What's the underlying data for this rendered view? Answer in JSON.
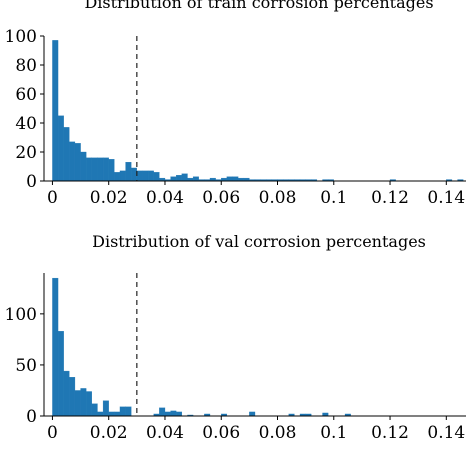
{
  "chart_data": [
    {
      "type": "bar",
      "title": "Distribution of train corrosion percentages",
      "xlabel": "",
      "ylabel": "",
      "xlim": [
        -0.003,
        0.147
      ],
      "ylim": [
        0,
        100
      ],
      "xticks": [
        0,
        0.02,
        0.04,
        0.06,
        0.08,
        0.1,
        0.12,
        0.14
      ],
      "xtick_labels": [
        "0",
        "0.02",
        "0.04",
        "0.06",
        "0.08",
        "0.1",
        "0.12",
        "0.14"
      ],
      "yticks": [
        0,
        20,
        40,
        60,
        80,
        100
      ],
      "ytick_labels": [
        "0",
        "20",
        "40",
        "60",
        "80",
        "100"
      ],
      "threshold_line_x": 0.03,
      "bin_width": 0.002,
      "bin_starts": [
        0.0,
        0.002,
        0.004,
        0.006,
        0.008,
        0.01,
        0.012,
        0.014,
        0.016,
        0.018,
        0.02,
        0.022,
        0.024,
        0.026,
        0.028,
        0.03,
        0.032,
        0.034,
        0.036,
        0.038,
        0.04,
        0.042,
        0.044,
        0.046,
        0.048,
        0.05,
        0.052,
        0.054,
        0.056,
        0.058,
        0.06,
        0.062,
        0.064,
        0.066,
        0.068,
        0.07,
        0.072,
        0.074,
        0.076,
        0.078,
        0.08,
        0.082,
        0.084,
        0.086,
        0.088,
        0.09,
        0.092,
        0.094,
        0.096,
        0.098,
        0.1,
        0.102,
        0.104,
        0.106,
        0.108,
        0.11,
        0.112,
        0.114,
        0.116,
        0.118,
        0.12,
        0.122,
        0.124,
        0.126,
        0.128,
        0.13,
        0.132,
        0.134,
        0.136,
        0.138,
        0.14,
        0.142,
        0.144
      ],
      "values": [
        97,
        45,
        37,
        27,
        26,
        20,
        16,
        16,
        16,
        16,
        15,
        6,
        7,
        13,
        9,
        7,
        7,
        7,
        6,
        2,
        1,
        3,
        4,
        5,
        2,
        3,
        1,
        1,
        2,
        1,
        2,
        3,
        3,
        2,
        2,
        1,
        1,
        1,
        1,
        1,
        1,
        1,
        1,
        1,
        1,
        1,
        1,
        0,
        1,
        1,
        0,
        0,
        0,
        0,
        0,
        0,
        0,
        0,
        0,
        0,
        1,
        0,
        0,
        0,
        0,
        0,
        0,
        0,
        0,
        0,
        1,
        0,
        1
      ]
    },
    {
      "type": "bar",
      "title": "Distribution of val corrosion percentages",
      "xlabel": "",
      "ylabel": "",
      "xlim": [
        -0.003,
        0.147
      ],
      "ylim": [
        0,
        140
      ],
      "xticks": [
        0,
        0.02,
        0.04,
        0.06,
        0.08,
        0.1,
        0.12,
        0.14
      ],
      "xtick_labels": [
        "0",
        "0.02",
        "0.04",
        "0.06",
        "0.08",
        "0.1",
        "0.12",
        "0.14"
      ],
      "yticks": [
        0,
        50,
        100
      ],
      "ytick_labels": [
        "0",
        "50",
        "100"
      ],
      "threshold_line_x": 0.03,
      "bin_width": 0.002,
      "bin_starts": [
        0.0,
        0.002,
        0.004,
        0.006,
        0.008,
        0.01,
        0.012,
        0.014,
        0.016,
        0.018,
        0.02,
        0.022,
        0.024,
        0.026,
        0.028,
        0.03,
        0.032,
        0.034,
        0.036,
        0.038,
        0.04,
        0.042,
        0.044,
        0.046,
        0.048,
        0.05,
        0.052,
        0.054,
        0.056,
        0.058,
        0.06,
        0.062,
        0.064,
        0.066,
        0.068,
        0.07,
        0.072,
        0.074,
        0.076,
        0.078,
        0.08,
        0.082,
        0.084,
        0.086,
        0.088,
        0.09,
        0.092,
        0.094,
        0.096,
        0.098,
        0.1,
        0.102,
        0.104,
        0.106,
        0.108,
        0.11,
        0.112,
        0.114,
        0.116,
        0.118,
        0.12,
        0.122,
        0.124,
        0.126,
        0.128,
        0.13,
        0.132,
        0.134,
        0.136,
        0.138,
        0.14,
        0.142,
        0.144
      ],
      "values": [
        135,
        83,
        44,
        38,
        25,
        27,
        24,
        12,
        4,
        15,
        4,
        4,
        9,
        9,
        0,
        0,
        0,
        0,
        2,
        8,
        4,
        5,
        4,
        0,
        1,
        0,
        0,
        2,
        0,
        0,
        2,
        0,
        0,
        0,
        0,
        4,
        0,
        0,
        0,
        0,
        0,
        0,
        2,
        0,
        2,
        2,
        0,
        0,
        3,
        0,
        0,
        0,
        2,
        0,
        0,
        0,
        0,
        0,
        0,
        0,
        0,
        0,
        0,
        0,
        0,
        0,
        0,
        0,
        0,
        0,
        0,
        0,
        0
      ]
    }
  ]
}
